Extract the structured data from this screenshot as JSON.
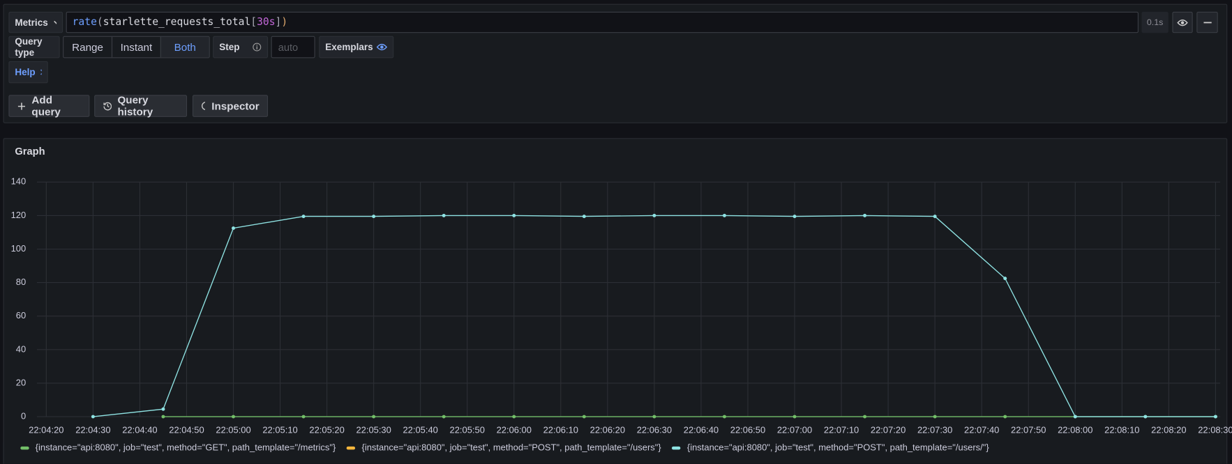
{
  "toolbar": {
    "metrics_button": "Metrics",
    "query_tokens": [
      "rate",
      "(",
      "starlette_requests_total",
      "[",
      "30s",
      "]",
      ")"
    ],
    "duration": "0.1s"
  },
  "options": {
    "query_type_label": "Query type",
    "query_types": [
      "Range",
      "Instant",
      "Both"
    ],
    "active_query_type": "Both",
    "step_label": "Step",
    "step_placeholder": "auto",
    "exemplars_label": "Exemplars",
    "help": "Help"
  },
  "actions": [
    "Add query",
    "Query history",
    "Inspector"
  ],
  "chart_data": {
    "type": "line",
    "title": "Graph",
    "x": [
      "22:04:30",
      "22:04:45",
      "22:05:00",
      "22:05:15",
      "22:05:30",
      "22:05:45",
      "22:06:00",
      "22:06:15",
      "22:06:30",
      "22:06:45",
      "22:07:00",
      "22:07:15",
      "22:07:30",
      "22:07:45",
      "22:08:00",
      "22:08:15",
      "22:08:30"
    ],
    "series": [
      {
        "name": "{instance=\"api:8080\", job=\"test\", method=\"GET\", path_template=\"/metrics\"}",
        "color": "#73bf69",
        "values": [
          null,
          0,
          0,
          0,
          0,
          0,
          0,
          0,
          0,
          0,
          0,
          0,
          0,
          0,
          0,
          0,
          0
        ]
      },
      {
        "name": "{instance=\"api:8080\", job=\"test\", method=\"POST\", path_template=\"/users\"}",
        "color": "#f5b73d",
        "values": [
          null,
          null,
          null,
          null,
          null,
          null,
          null,
          null,
          null,
          null,
          null,
          null,
          null,
          null,
          null,
          null,
          null
        ]
      },
      {
        "name": "{instance=\"api:8080\", job=\"test\", method=\"POST\", path_template=\"/users/\"}",
        "color": "#8fe3e3",
        "values": [
          0,
          4.5,
          112.5,
          119.5,
          119.5,
          120,
          120,
          119.5,
          120,
          120,
          119.5,
          120,
          119.5,
          82.5,
          0,
          0,
          0
        ]
      }
    ],
    "xlim": [
      "22:04:18",
      "22:08:31"
    ],
    "xticks": [
      "22:04:20",
      "22:04:30",
      "22:04:40",
      "22:04:50",
      "22:05:00",
      "22:05:10",
      "22:05:20",
      "22:05:30",
      "22:05:40",
      "22:05:50",
      "22:06:00",
      "22:06:10",
      "22:06:20",
      "22:06:30",
      "22:06:40",
      "22:06:50",
      "22:07:00",
      "22:07:10",
      "22:07:20",
      "22:07:30",
      "22:07:40",
      "22:07:50",
      "22:08:00",
      "22:08:10",
      "22:08:20",
      "22:08:30"
    ],
    "ylim": [
      0,
      140
    ],
    "yticks": [
      0,
      20,
      40,
      60,
      80,
      100,
      120,
      140
    ],
    "grid": true
  }
}
